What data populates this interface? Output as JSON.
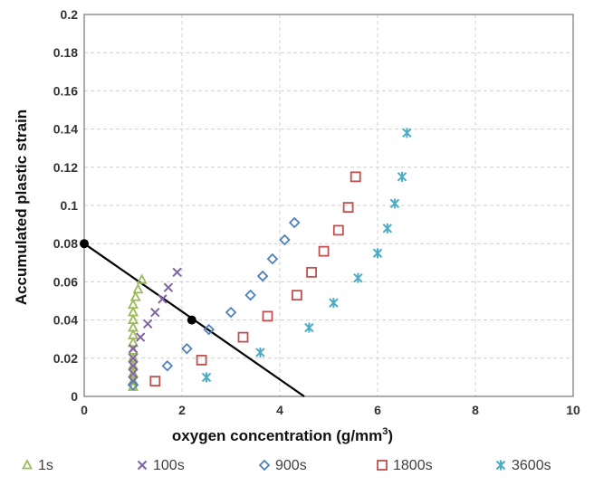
{
  "chart_data": {
    "type": "scatter",
    "xlabel": "oxygen concentration (g/mm",
    "xlabel_sup": "3",
    "xlabel_end": ")",
    "ylabel": "Accumulated plastic strain",
    "xlim": [
      0,
      10
    ],
    "ylim": [
      0,
      0.2
    ],
    "x_ticks": [
      0,
      2,
      4,
      6,
      8,
      10
    ],
    "y_ticks": [
      0,
      0.02,
      0.04,
      0.06,
      0.08,
      0.1,
      0.12,
      0.14,
      0.16,
      0.18,
      0.2
    ],
    "x_tick_labels": [
      "0",
      "2",
      "4",
      "6",
      "8",
      "10"
    ],
    "y_tick_labels": [
      "0",
      "0.02",
      "0.04",
      "0.06",
      "0.08",
      "0.1",
      "0.12",
      "0.14",
      "0.16",
      "0.18",
      "0.2"
    ],
    "grid": true,
    "legend_position": "bottom",
    "series": [
      {
        "name": "1s",
        "marker": "triangle",
        "color": "#9BBB59",
        "points": [
          [
            1.0,
            0.005
          ],
          [
            1.0,
            0.008
          ],
          [
            1.0,
            0.012
          ],
          [
            1.0,
            0.016
          ],
          [
            1.0,
            0.02
          ],
          [
            1.0,
            0.024
          ],
          [
            1.0,
            0.028
          ],
          [
            1.0,
            0.032
          ],
          [
            1.0,
            0.036
          ],
          [
            1.0,
            0.04
          ],
          [
            1.0,
            0.044
          ],
          [
            1.0,
            0.048
          ],
          [
            1.05,
            0.052
          ],
          [
            1.1,
            0.056
          ],
          [
            1.18,
            0.061
          ]
        ]
      },
      {
        "name": "100s",
        "marker": "x",
        "color": "#8064A2",
        "points": [
          [
            1.0,
            0.008
          ],
          [
            1.0,
            0.012
          ],
          [
            1.0,
            0.016
          ],
          [
            1.0,
            0.02
          ],
          [
            1.0,
            0.025
          ],
          [
            1.15,
            0.031
          ],
          [
            1.3,
            0.038
          ],
          [
            1.45,
            0.044
          ],
          [
            1.6,
            0.051
          ],
          [
            1.72,
            0.057
          ],
          [
            1.9,
            0.065
          ]
        ]
      },
      {
        "name": "900s",
        "marker": "diamond",
        "color": "#4F81BD",
        "points": [
          [
            1.0,
            0.006
          ],
          [
            1.7,
            0.016
          ],
          [
            2.1,
            0.025
          ],
          [
            2.55,
            0.035
          ],
          [
            3.0,
            0.044
          ],
          [
            3.4,
            0.053
          ],
          [
            3.65,
            0.063
          ],
          [
            3.85,
            0.072
          ],
          [
            4.1,
            0.082
          ],
          [
            4.3,
            0.091
          ]
        ]
      },
      {
        "name": "1800s",
        "marker": "square",
        "color": "#C0504D",
        "points": [
          [
            1.45,
            0.008
          ],
          [
            2.4,
            0.019
          ],
          [
            3.25,
            0.031
          ],
          [
            3.75,
            0.042
          ],
          [
            4.35,
            0.053
          ],
          [
            4.65,
            0.065
          ],
          [
            4.9,
            0.076
          ],
          [
            5.2,
            0.087
          ],
          [
            5.4,
            0.099
          ],
          [
            5.55,
            0.115
          ]
        ]
      },
      {
        "name": "3600s",
        "marker": "asterisk",
        "color": "#4BACC6",
        "points": [
          [
            2.5,
            0.01
          ],
          [
            3.6,
            0.023
          ],
          [
            4.6,
            0.036
          ],
          [
            5.1,
            0.049
          ],
          [
            5.6,
            0.062
          ],
          [
            6.0,
            0.075
          ],
          [
            6.2,
            0.088
          ],
          [
            6.35,
            0.101
          ],
          [
            6.5,
            0.115
          ],
          [
            6.6,
            0.138
          ]
        ]
      }
    ],
    "line": {
      "color": "#000000",
      "from": [
        0,
        0.08
      ],
      "to": [
        4.5,
        0.0
      ],
      "markers": [
        [
          0,
          0.08
        ],
        [
          2.2,
          0.04
        ]
      ]
    }
  }
}
